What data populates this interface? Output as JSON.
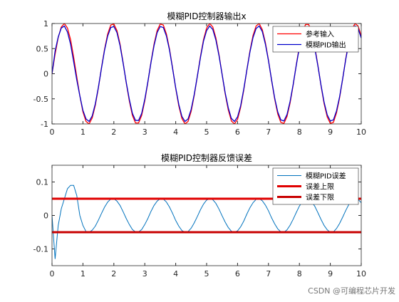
{
  "chart_data": [
    {
      "type": "line",
      "title": "模糊PID控制器输出x",
      "x": [
        0,
        0.1,
        0.2,
        0.3,
        0.4,
        0.5,
        0.6,
        0.7,
        0.8,
        0.9,
        1,
        1.1,
        1.2,
        1.3,
        1.4,
        1.5,
        1.6,
        1.7,
        1.8,
        1.9,
        2,
        2.1,
        2.2,
        2.3,
        2.4,
        2.5,
        2.6,
        2.7,
        2.8,
        2.9,
        3,
        3.1,
        3.2,
        3.3,
        3.4,
        3.5,
        3.6,
        3.7,
        3.8,
        3.9,
        4,
        4.1,
        4.2,
        4.3,
        4.4,
        4.5,
        4.6,
        4.7,
        4.8,
        4.9,
        5,
        5.1,
        5.2,
        5.3,
        5.4,
        5.5,
        5.6,
        5.7,
        5.8,
        5.9,
        6,
        6.1,
        6.2,
        6.3,
        6.4,
        6.5,
        6.6,
        6.7,
        6.8,
        6.9,
        7,
        7.1,
        7.2,
        7.3,
        7.4,
        7.5,
        7.6,
        7.7,
        7.8,
        7.9,
        8,
        8.1,
        8.2,
        8.3,
        8.4,
        8.5,
        8.6,
        8.7,
        8.8,
        8.9,
        9,
        9.1,
        9.2,
        9.3,
        9.4,
        9.5,
        9.6,
        9.7,
        9.8,
        9.9,
        10
      ],
      "series": [
        {
          "name": "参考输入",
          "color": "#ff0000",
          "values": [
            0,
            0.39,
            0.72,
            0.93,
            1,
            0.91,
            0.68,
            0.33,
            -0.06,
            -0.44,
            -0.76,
            -0.95,
            -1,
            -0.88,
            -0.63,
            -0.28,
            0.12,
            0.49,
            0.79,
            0.97,
            0.99,
            0.86,
            0.59,
            0.22,
            -0.18,
            -0.54,
            -0.83,
            -0.98,
            -0.98,
            -0.83,
            -0.54,
            -0.17,
            0.23,
            0.59,
            0.86,
            0.99,
            0.97,
            0.79,
            0.49,
            0.11,
            -0.29,
            -0.64,
            -0.89,
            -1,
            -0.95,
            -0.75,
            -0.43,
            -0.05,
            0.34,
            0.68,
            0.91,
            1,
            0.93,
            0.71,
            0.38,
            -0.01,
            -0.4,
            -0.72,
            -0.94,
            -1,
            -0.91,
            -0.67,
            -0.33,
            0.07,
            0.45,
            0.76,
            0.95,
            1,
            0.88,
            0.62,
            0.27,
            -0.13,
            -0.5,
            -0.8,
            -0.97,
            -0.99,
            -0.85,
            -0.58,
            -0.22,
            0.18,
            0.55,
            0.83,
            0.98,
            0.98,
            0.82,
            0.53,
            0.16,
            -0.24,
            -0.6,
            -0.86,
            -0.99,
            -0.97,
            -0.78,
            -0.48,
            -0.1,
            0.3,
            0.65,
            0.89,
            1,
            0.95,
            0.75
          ]
        },
        {
          "name": "模糊PID输出",
          "color": "#0000cc",
          "values": [
            0,
            0.45,
            0.73,
            0.91,
            0.95,
            0.83,
            0.59,
            0.24,
            -0.12,
            -0.44,
            -0.73,
            -0.9,
            -0.95,
            -0.84,
            -0.6,
            -0.27,
            0.11,
            0.47,
            0.75,
            0.92,
            0.94,
            0.82,
            0.56,
            0.21,
            -0.17,
            -0.51,
            -0.79,
            -0.93,
            -0.93,
            -0.79,
            -0.51,
            -0.16,
            0.22,
            0.56,
            0.82,
            0.94,
            0.92,
            0.75,
            0.47,
            0.1,
            -0.28,
            -0.61,
            -0.85,
            -0.95,
            -0.9,
            -0.71,
            -0.41,
            -0.05,
            0.32,
            0.65,
            0.86,
            0.95,
            0.88,
            0.67,
            0.36,
            -0.01,
            -0.38,
            -0.68,
            -0.89,
            -0.95,
            -0.86,
            -0.64,
            -0.31,
            0.07,
            0.43,
            0.72,
            0.9,
            0.95,
            0.84,
            0.59,
            0.26,
            -0.12,
            -0.48,
            -0.76,
            -0.92,
            -0.94,
            -0.81,
            -0.55,
            -0.21,
            0.17,
            0.52,
            0.79,
            0.93,
            0.93,
            0.78,
            0.5,
            0.15,
            -0.23,
            -0.57,
            -0.82,
            -0.94,
            -0.92,
            -0.74,
            -0.46,
            -0.1,
            0.29,
            0.62,
            0.85,
            0.95,
            0.9,
            0.71
          ]
        }
      ],
      "xlim": [
        0,
        10
      ],
      "xticks": [
        0,
        1,
        2,
        3,
        4,
        5,
        6,
        7,
        8,
        9,
        10
      ],
      "ylim": [
        -1,
        1
      ],
      "yticks": [
        -1,
        -0.5,
        0,
        0.5,
        1
      ],
      "legend": "upper right"
    },
    {
      "type": "line",
      "title": "模糊PID控制器反馈误差",
      "x": [
        0,
        0.1,
        0.2,
        0.3,
        0.4,
        0.5,
        0.6,
        0.7,
        0.8,
        0.9,
        1,
        1.1,
        1.2,
        1.3,
        1.4,
        1.5,
        1.6,
        1.7,
        1.8,
        1.9,
        2,
        2.1,
        2.2,
        2.3,
        2.4,
        2.5,
        2.6,
        2.7,
        2.8,
        2.9,
        3,
        3.1,
        3.2,
        3.3,
        3.4,
        3.5,
        3.6,
        3.7,
        3.8,
        3.9,
        4,
        4.1,
        4.2,
        4.3,
        4.4,
        4.5,
        4.6,
        4.7,
        4.8,
        4.9,
        5,
        5.1,
        5.2,
        5.3,
        5.4,
        5.5,
        5.6,
        5.7,
        5.8,
        5.9,
        6,
        6.1,
        6.2,
        6.3,
        6.4,
        6.5,
        6.6,
        6.7,
        6.8,
        6.9,
        7,
        7.1,
        7.2,
        7.3,
        7.4,
        7.5,
        7.6,
        7.7,
        7.8,
        7.9,
        8,
        8.1,
        8.2,
        8.3,
        8.4,
        8.5,
        8.6,
        8.7,
        8.8,
        8.9,
        9,
        9.1,
        9.2,
        9.3,
        9.4,
        9.5,
        9.6,
        9.7,
        9.8,
        9.9,
        10
      ],
      "series": [
        {
          "name": "模糊PID误差",
          "color": "#0072bd",
          "width": 1,
          "values": [
            0,
            -0.13,
            -0.03,
            0.02,
            0.05,
            0.08,
            0.09,
            0.09,
            0.06,
            0,
            -0.03,
            -0.048,
            -0.05,
            -0.044,
            -0.032,
            -0.014,
            0.006,
            0.025,
            0.04,
            0.049,
            0.05,
            0.043,
            0.03,
            0.011,
            -0.009,
            -0.027,
            -0.042,
            -0.049,
            -0.049,
            -0.042,
            -0.027,
            -0.009,
            0.012,
            0.03,
            0.043,
            0.05,
            0.049,
            0.04,
            0.025,
            0.006,
            -0.015,
            -0.032,
            -0.045,
            -0.05,
            -0.048,
            -0.038,
            -0.022,
            -0.003,
            0.017,
            0.034,
            0.046,
            0.05,
            0.047,
            0.036,
            0.019,
            -0.001,
            -0.02,
            -0.036,
            -0.047,
            -0.05,
            -0.046,
            -0.034,
            -0.017,
            0.004,
            0.023,
            0.038,
            0.048,
            0.05,
            0.044,
            0.031,
            0.014,
            -0.007,
            -0.025,
            -0.04,
            -0.049,
            -0.05,
            -0.043,
            -0.029,
            -0.011,
            0.009,
            0.028,
            0.042,
            0.049,
            0.049,
            0.041,
            0.027,
            0.008,
            -0.012,
            -0.03,
            -0.043,
            -0.05,
            -0.049,
            -0.039,
            -0.024,
            -0.005,
            0.015,
            0.033,
            0.045,
            0.05,
            0.048,
            0.038
          ]
        },
        {
          "name": "误差上限",
          "color": "#e00000",
          "width": 3,
          "x": [
            0,
            10
          ],
          "values": [
            0.05,
            0.05
          ]
        },
        {
          "name": "误差下限",
          "color": "#c80000",
          "width": 3,
          "x": [
            0,
            10
          ],
          "values": [
            -0.05,
            -0.05
          ]
        }
      ],
      "xlim": [
        0,
        10
      ],
      "xticks": [
        0,
        1,
        2,
        3,
        4,
        5,
        6,
        7,
        8,
        9,
        10
      ],
      "ylim": [
        -0.15,
        0.15
      ],
      "yticks": [
        -0.1,
        0,
        0.1
      ],
      "legend": "upper right"
    }
  ],
  "watermark": "CSDN @可编程芯片开发"
}
